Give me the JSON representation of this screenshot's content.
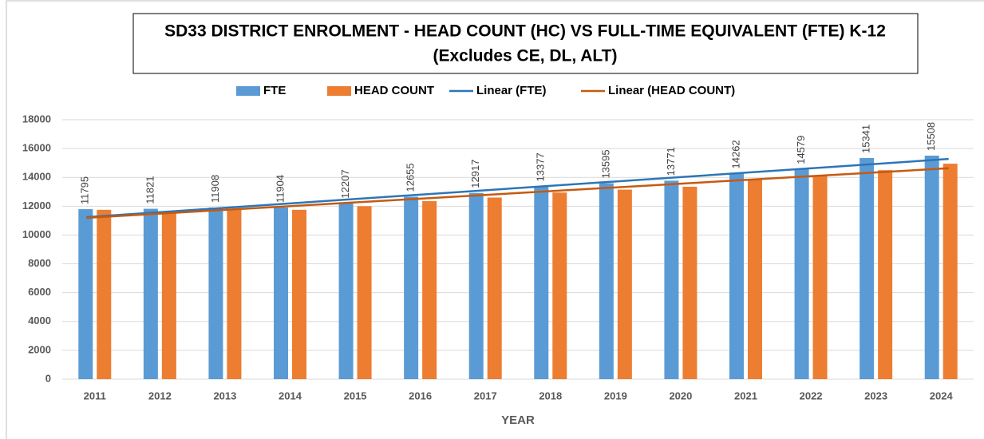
{
  "chart_data": {
    "type": "bar",
    "title": "SD33 DISTRICT ENROLMENT - HEAD COUNT (HC) VS FULL-TIME EQUIVALENT (FTE) K-12",
    "subtitle": "(Excludes CE, DL, ALT)",
    "x_label": "YEAR",
    "categories": [
      "2011",
      "2012",
      "2013",
      "2014",
      "2015",
      "2016",
      "2017",
      "2018",
      "2019",
      "2020",
      "2021",
      "2022",
      "2023",
      "2024"
    ],
    "series": [
      {
        "name": "FTE",
        "color": "#5b9bd5",
        "values": [
          11795,
          11821,
          11908,
          11904,
          12207,
          12655,
          12917,
          13377,
          13595,
          13771,
          14262,
          14579,
          15341,
          15508
        ],
        "data_labels": true
      },
      {
        "name": "HEAD COUNT",
        "color": "#ed7d31",
        "values": [
          11750,
          11650,
          11800,
          11750,
          12000,
          12350,
          12600,
          12950,
          13150,
          13350,
          13850,
          14150,
          14500,
          14950
        ]
      }
    ],
    "trendlines": [
      {
        "name": "Linear (FTE)",
        "series": 0,
        "color": "#2e75b6"
      },
      {
        "name": "Linear (HEAD COUNT)",
        "series": 1,
        "color": "#c55a11"
      }
    ],
    "ylim": [
      0,
      18000
    ],
    "yticks": [
      0,
      2000,
      4000,
      6000,
      8000,
      10000,
      12000,
      14000,
      16000,
      18000
    ],
    "grid": true
  }
}
